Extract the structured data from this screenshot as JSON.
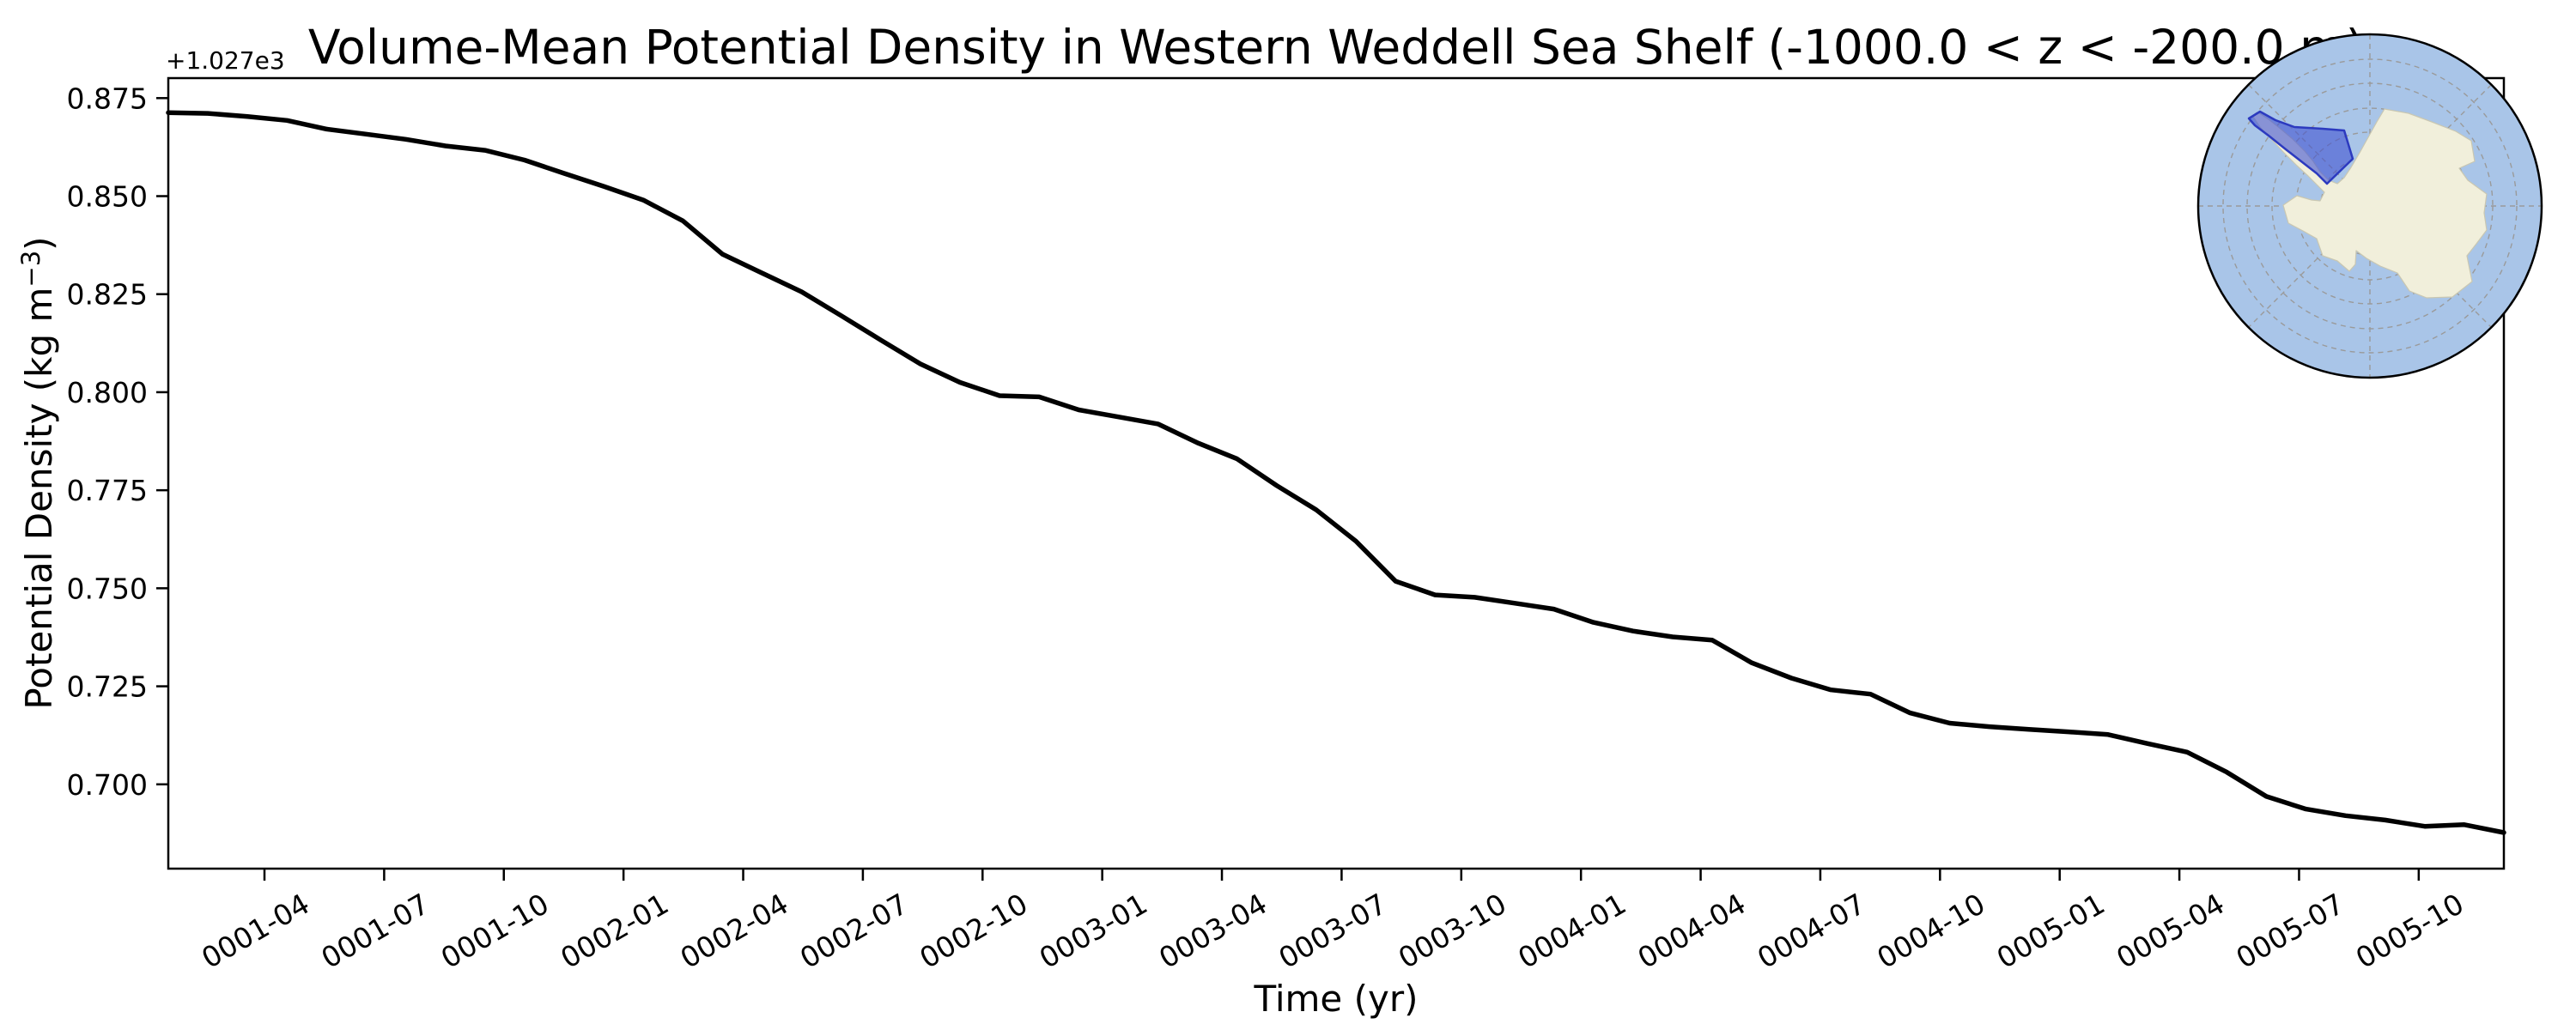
{
  "figure": {
    "background_color": "#ffffff",
    "line_color": "#000000",
    "spine_color": "#000000"
  },
  "chart_data": {
    "type": "line",
    "title": "Volume-Mean Potential Density in Western Weddell Sea Shelf (-1000.0 < z < -200.0 m)",
    "xlabel": "Time (yr)",
    "ylabel": "Potential Density (kg m⁻³)",
    "ylabel_parts": {
      "prefix": "Potential Density (kg m",
      "superscript": "−3",
      "suffix": ")"
    },
    "y_axis_offset_label": "+1.027e3",
    "y_offset": 1027,
    "ylim": [
      1027.6785,
      1027.8801
    ],
    "grid": "off",
    "legend": "none",
    "x_monthly": [
      "0001-01",
      "0001-02",
      "0001-03",
      "0001-04",
      "0001-05",
      "0001-06",
      "0001-07",
      "0001-08",
      "0001-09",
      "0001-10",
      "0001-11",
      "0001-12",
      "0002-01",
      "0002-02",
      "0002-03",
      "0002-04",
      "0002-05",
      "0002-06",
      "0002-07",
      "0002-08",
      "0002-09",
      "0002-10",
      "0002-11",
      "0002-12",
      "0003-01",
      "0003-02",
      "0003-03",
      "0003-04",
      "0003-05",
      "0003-06",
      "0003-07",
      "0003-08",
      "0003-09",
      "0003-10",
      "0003-11",
      "0003-12",
      "0004-01",
      "0004-02",
      "0004-03",
      "0004-04",
      "0004-05",
      "0004-06",
      "0004-07",
      "0004-08",
      "0004-09",
      "0004-10",
      "0004-11",
      "0004-12",
      "0005-01",
      "0005-02",
      "0005-03",
      "0005-04",
      "0005-05",
      "0005-06",
      "0005-07",
      "0005-08",
      "0005-09",
      "0005-10",
      "0005-11",
      "0005-12"
    ],
    "series": [
      {
        "name": "volume-mean potential density",
        "color": "#000000",
        "values": [
          1027.8713,
          1027.8711,
          1027.8703,
          1027.8693,
          1027.8671,
          1027.8658,
          1027.8645,
          1027.8628,
          1027.8617,
          1027.8592,
          1027.8558,
          1027.8525,
          1027.849,
          1027.8437,
          1027.8352,
          1027.8304,
          1027.8256,
          1027.8195,
          1027.8133,
          1027.8072,
          1027.8025,
          1027.7991,
          1027.7988,
          1027.7955,
          1027.7937,
          1027.7919,
          1027.7871,
          1027.783,
          1027.7762,
          1027.77,
          1027.762,
          1027.7518,
          1027.7483,
          1027.7477,
          1027.7462,
          1027.7447,
          1027.7413,
          1027.7391,
          1027.7376,
          1027.7368,
          1027.731,
          1027.7271,
          1027.7241,
          1027.723,
          1027.7182,
          1027.7156,
          1027.7147,
          1027.714,
          1027.7134,
          1027.7127,
          1027.7104,
          1027.7082,
          1027.7031,
          1027.6969,
          1027.6937,
          1027.692,
          1027.6909,
          1027.6893,
          1027.6897,
          1027.6877
        ]
      }
    ],
    "ytick_values": [
      0.875,
      0.85,
      0.825,
      0.8,
      0.775,
      0.75,
      0.725,
      0.7
    ],
    "ytick_labels": [
      "0.875",
      "0.850",
      "0.825",
      "0.800",
      "0.775",
      "0.750",
      "0.725",
      "0.700"
    ],
    "xtick_labels": [
      "0001-04",
      "0001-07",
      "0001-10",
      "0002-01",
      "0002-04",
      "0002-07",
      "0002-10",
      "0003-01",
      "0003-04",
      "0003-07",
      "0003-10",
      "0004-01",
      "0004-04",
      "0004-07",
      "0004-10",
      "0005-01",
      "0005-04",
      "0005-07",
      "0005-10"
    ],
    "xtick_rotation_deg": 30
  },
  "inset_map": {
    "description": "south-polar-locator-map",
    "highlighted_region": "Western Weddell Sea Shelf",
    "ocean_color": "#a9c5e8",
    "land_color": "#f1efdb",
    "land_edge_color": "#c9c7b2",
    "graticule_color": "#9a9a9a",
    "outline_color": "#000000",
    "highlight_fill": "#4353d0",
    "highlight_stroke": "#2c3abf"
  }
}
